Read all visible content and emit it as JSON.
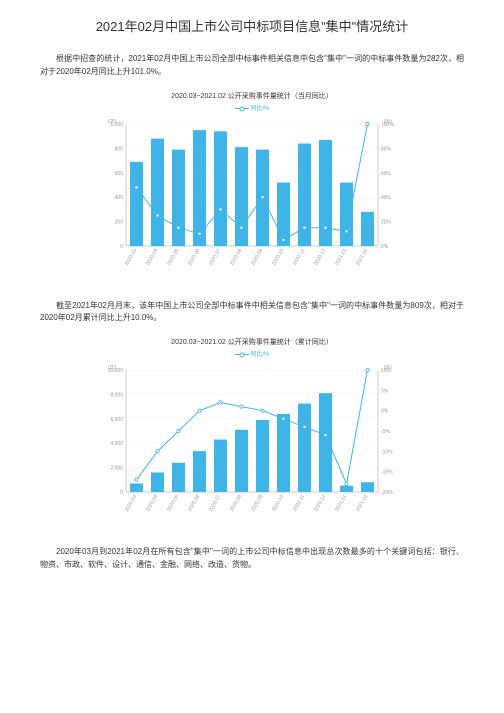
{
  "title": "2021年02月中国上市公司中标项目信息\"集中\"情况统计",
  "para1": "根据中招查的统计，2021年02月中国上市公司全部中标事件相关信息中包含\"集中\"一词的中标事件数量为282次，相对于2020年02月同比上升101.0%。",
  "para2": "截至2021年02月月末，该年中国上市公司全部中标事件中相关信息包含\"集中\"一词的中标事件数量为809次，相对于2020年02月累计同比上升10.0%。",
  "para3": "2020年03月到2021年02月在所有包含\"集中\"一词的上市公司中标信息中出现总次数最多的十个关键词包括：银行、物资、市政、软件、设计、通信、金融、网络、改造、货物。",
  "chart1": {
    "type": "bar+line",
    "title": "2020.03~2021.02 公开采购事件量统计（当月同比）",
    "legend": "同比/%",
    "unit_left": "(次)",
    "unit_right": "(%)",
    "categories": [
      "2020.03",
      "2020.04",
      "2020.05",
      "2020.06",
      "2020.07",
      "2020.08",
      "2020.09",
      "2020.10",
      "2020.11",
      "2020.12",
      "2021.01",
      "2021.02"
    ],
    "bar_values": [
      690,
      880,
      790,
      950,
      940,
      810,
      790,
      520,
      840,
      870,
      520,
      280
    ],
    "line_values": [
      48,
      25,
      15,
      10,
      30,
      15,
      40,
      5,
      15,
      15,
      12,
      100
    ],
    "bar_color": "#3eb4e7",
    "line_color": "#3eb4e7",
    "y_left_max": 1000,
    "y_left_step": 200,
    "y_right_max": 100,
    "y_right_step": 20,
    "background": "#ffffff",
    "grid_color": "#cccccc",
    "axis_color": "#999999",
    "label_fontsize": 5
  },
  "chart2": {
    "type": "bar+line",
    "title": "2020.03~2021.02 公开采购事件量统计（累计同比）",
    "legend": "同比/%",
    "unit_left": "(次)",
    "unit_right": "(%)",
    "categories": [
      "2020.03",
      "2020.04",
      "2020.05",
      "2020.06",
      "2020.07",
      "2020.08",
      "2020.09",
      "2020.10",
      "2020.11",
      "2020.12",
      "2021.01",
      "2021.02"
    ],
    "bar_values": [
      700,
      1600,
      2400,
      3350,
      4300,
      5100,
      5900,
      6400,
      7250,
      8100,
      520,
      800
    ],
    "line_values": [
      -17,
      -10,
      -5,
      0,
      2,
      1,
      0,
      -2,
      -4,
      -6,
      -18,
      10
    ],
    "bar_color": "#3eb4e7",
    "line_color": "#3eb4e7",
    "y_left_max": 10000,
    "y_left_step": 2000,
    "y_right_min": -20,
    "y_right_max": 10,
    "y_right_step": 5,
    "background": "#ffffff",
    "grid_color": "#cccccc",
    "axis_color": "#999999",
    "label_fontsize": 5
  }
}
